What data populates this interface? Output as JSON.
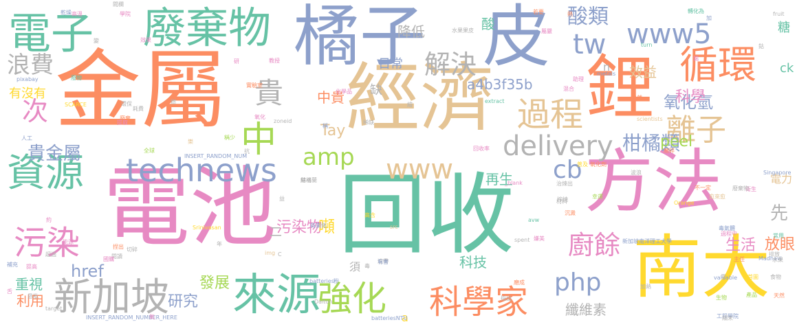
{
  "palette": {
    "green": "#66c2a5",
    "orange": "#fc8d62",
    "blue": "#8da0cb",
    "pink": "#e78ac3",
    "lime": "#a6d854",
    "yellow": "#ffd92f",
    "tan": "#e5c494",
    "gray": "#b3b3b3"
  },
  "words": [
    {
      "text": "回收",
      "color": "green"
    },
    {
      "text": "電池",
      "color": "pink"
    },
    {
      "text": "金屬",
      "color": "orange"
    },
    {
      "text": "經濟",
      "color": "tan"
    },
    {
      "text": "方法",
      "color": "pink"
    },
    {
      "text": "橘子",
      "color": "blue"
    },
    {
      "text": "皮",
      "color": "blue"
    },
    {
      "text": "南大",
      "color": "yellow"
    },
    {
      "text": "鋰",
      "color": "orange"
    },
    {
      "text": "廢棄物",
      "color": "green"
    },
    {
      "text": "電子",
      "color": "green"
    },
    {
      "text": "資源",
      "color": "green"
    },
    {
      "text": "循環",
      "color": "orange"
    },
    {
      "text": "來源",
      "color": "green"
    },
    {
      "text": "新加坡",
      "color": "gray"
    },
    {
      "text": "科學家",
      "color": "orange"
    },
    {
      "text": "technews",
      "color": "blue"
    },
    {
      "text": "delivery",
      "color": "gray"
    },
    {
      "text": "www5",
      "color": "blue"
    },
    {
      "text": "www",
      "color": "tan"
    },
    {
      "text": "過程",
      "color": "tan"
    },
    {
      "text": "強化",
      "color": "lime"
    },
    {
      "text": "污染",
      "color": "pink"
    },
    {
      "text": "離子",
      "color": "tan"
    },
    {
      "text": "中",
      "color": "lime"
    },
    {
      "text": "解決",
      "color": "gray"
    },
    {
      "text": "貴",
      "color": "gray"
    },
    {
      "text": "tw",
      "color": "blue"
    },
    {
      "text": "amp",
      "color": "lime"
    },
    {
      "text": "cb",
      "color": "blue"
    },
    {
      "text": "php",
      "color": "blue"
    },
    {
      "text": "廚餘",
      "color": "pink"
    },
    {
      "text": "浪費",
      "color": "gray"
    },
    {
      "text": "次",
      "color": "pink"
    },
    {
      "text": "貴金屬",
      "color": "blue"
    },
    {
      "text": "柑橘類",
      "color": "blue"
    },
    {
      "text": "氧化氫",
      "color": "blue"
    },
    {
      "text": "科學",
      "color": "pink"
    },
    {
      "text": "酸類",
      "color": "blue"
    },
    {
      "text": "污染物",
      "color": "pink"
    },
    {
      "text": "Tay",
      "color": "tan"
    },
    {
      "text": "peel",
      "color": "lime"
    },
    {
      "text": "研究",
      "color": "blue"
    },
    {
      "text": "先",
      "color": "gray"
    },
    {
      "text": "纖維素",
      "color": "gray"
    },
    {
      "text": "生活",
      "color": "pink"
    },
    {
      "text": "放眼",
      "color": "orange"
    },
    {
      "text": "發展",
      "color": "lime"
    },
    {
      "text": "科技",
      "color": "green"
    },
    {
      "text": "重視",
      "color": "green"
    },
    {
      "text": "利用",
      "color": "orange"
    },
    {
      "text": "href",
      "color": "blue"
    },
    {
      "text": "再生",
      "color": "green"
    },
    {
      "text": "電力",
      "color": "tan"
    },
    {
      "text": "a4b3f35b",
      "color": "blue"
    },
    {
      "text": "中貴",
      "color": "orange"
    },
    {
      "text": "有沒有",
      "color": "yellow"
    },
    {
      "text": "效益",
      "color": "tan"
    },
    {
      "text": "降低",
      "color": "gray"
    },
    {
      "text": "日常",
      "color": "blue"
    },
    {
      "text": "缺",
      "color": "gray"
    },
    {
      "text": "二",
      "color": "gray"
    },
    {
      "text": "酸",
      "color": "green"
    },
    {
      "text": "糖",
      "color": "green"
    },
    {
      "text": "須",
      "color": "gray"
    },
    {
      "text": "噸",
      "color": "yellow"
    },
    {
      "text": "ck",
      "color": "green"
    },
    {
      "text": "n",
      "color": "gray"
    },
    {
      "text": "a",
      "color": "yellow"
    },
    {
      "text": "INSERT_RANDOM_NUMBER_HERE",
      "color": "blue"
    },
    {
      "text": "INSERT_RANDOM_NUM",
      "color": "blue"
    },
    {
      "text": "batteriesNTU",
      "color": "blue"
    },
    {
      "text": "batteries",
      "color": "blue"
    },
    {
      "text": "scientists",
      "color": "tan"
    },
    {
      "text": "Singapore",
      "color": "blue"
    },
    {
      "text": "Orange",
      "color": "yellow"
    },
    {
      "text": "Madhavi",
      "color": "blue"
    },
    {
      "text": "Srinivasan",
      "color": "yellow"
    },
    {
      "text": "Dalton",
      "color": "gray"
    },
    {
      "text": "valuable",
      "color": "blue"
    },
    {
      "text": "spent",
      "color": "gray"
    },
    {
      "text": "zoneid",
      "color": "gray"
    },
    {
      "text": "extract",
      "color": "green"
    },
    {
      "text": "metals",
      "color": "blue"
    },
    {
      "text": "fruit",
      "color": "gray"
    },
    {
      "text": "target",
      "color": "gray"
    },
    {
      "text": "pixabay",
      "color": "blue"
    },
    {
      "text": "SCARCE",
      "color": "yellow"
    },
    {
      "text": "_blank",
      "color": "pink"
    },
    {
      "text": "新加坡南洋理工大學",
      "color": "blue"
    },
    {
      "text": "工程學院",
      "color": "blue"
    },
    {
      "text": "水果果皮",
      "color": "gray"
    },
    {
      "text": "轉化為",
      "color": "green"
    },
    {
      "text": "回收率",
      "color": "pink"
    },
    {
      "text": "氧化劑",
      "color": "orange"
    },
    {
      "text": "商業化",
      "color": "blue"
    },
    {
      "text": "化學品",
      "color": "pink"
    },
    {
      "text": "實驗室",
      "color": "orange"
    },
    {
      "text": "衛生",
      "color": "pink"
    },
    {
      "text": "能源",
      "color": "pink"
    },
    {
      "text": "天然",
      "color": "orange"
    },
    {
      "text": "常用",
      "color": "green"
    },
    {
      "text": "排放",
      "color": "gray"
    },
    {
      "text": "食物",
      "color": "gray"
    },
    {
      "text": "水果",
      "color": "gray"
    },
    {
      "text": "約",
      "color": "pink"
    },
    {
      "text": "年",
      "color": "gray"
    },
    {
      "text": "C",
      "color": "gray"
    },
    {
      "text": "img",
      "color": "tan"
    },
    {
      "text": "src",
      "color": "tan"
    },
    {
      "text": "turn",
      "color": "green"
    },
    {
      "text": "avw",
      "color": "green"
    },
    {
      "text": "首圖",
      "color": "yellow"
    },
    {
      "text": "乾燥",
      "color": "blue"
    },
    {
      "text": "高溫",
      "color": "pink"
    },
    {
      "text": "廢物",
      "color": "green"
    },
    {
      "text": "環保",
      "color": "gray"
    },
    {
      "text": "廢棄",
      "color": "orange"
    },
    {
      "text": "耗費",
      "color": "gray"
    },
    {
      "text": "提取",
      "color": "pink"
    },
    {
      "text": "人工",
      "color": "blue"
    },
    {
      "text": "全球",
      "color": "lime"
    },
    {
      "text": "嫌美",
      "color": "pink"
    },
    {
      "text": "速帶",
      "color": "gray"
    },
    {
      "text": "毒",
      "color": "gray"
    },
    {
      "text": "粉",
      "color": "blue"
    },
    {
      "text": "蘇格蘭",
      "color": "gray"
    },
    {
      "text": "生物",
      "color": "lime"
    },
    {
      "text": "若要",
      "color": "orange"
    },
    {
      "text": "加",
      "color": "blue"
    },
    {
      "text": "熱",
      "color": "orange"
    },
    {
      "text": "學院",
      "color": "pink"
    },
    {
      "text": "屬嚴",
      "color": "pink"
    },
    {
      "text": "閥欄",
      "color": "gray"
    },
    {
      "text": "效果",
      "color": "pink"
    },
    {
      "text": "變",
      "color": "gray"
    },
    {
      "text": "研",
      "color": "pink"
    },
    {
      "text": "教授",
      "color": "pink"
    },
    {
      "text": "錫",
      "color": "pink"
    },
    {
      "text": "鈷",
      "color": "gray"
    },
    {
      "text": "稀缺",
      "color": "gray"
    },
    {
      "text": "稱",
      "color": "blue"
    },
    {
      "text": "氧化",
      "color": "pink"
    },
    {
      "text": "混合",
      "color": "pink"
    },
    {
      "text": "助理",
      "color": "pink"
    },
    {
      "text": "自然",
      "color": "orange"
    },
    {
      "text": "普及",
      "color": "yellow"
    },
    {
      "text": "波浪",
      "color": "gray"
    },
    {
      "text": "過程中",
      "color": "pink"
    },
    {
      "text": "磨碎",
      "color": "orange"
    },
    {
      "text": "榨燒",
      "color": "gray"
    },
    {
      "text": "材料",
      "color": "gray"
    },
    {
      "text": "治煉出",
      "color": "gray"
    },
    {
      "text": "沉澱",
      "color": "orange"
    },
    {
      "text": "幸運",
      "color": "lime"
    },
    {
      "text": "愈來愈",
      "color": "tan"
    },
    {
      "text": "廢棄物",
      "color": "gray"
    },
    {
      "text": "不一定",
      "color": "orange"
    },
    {
      "text": "毒氣體",
      "color": "blue"
    },
    {
      "text": "主任",
      "color": "orange"
    },
    {
      "text": "零",
      "color": "gray"
    },
    {
      "text": "加熱",
      "color": "gray"
    },
    {
      "text": "細末",
      "color": "gray"
    },
    {
      "text": "產品",
      "color": "lime"
    },
    {
      "text": "磨成",
      "color": "orange"
    },
    {
      "text": "指出",
      "color": "gray"
    },
    {
      "text": "有害",
      "color": "blue"
    },
    {
      "text": "補充",
      "color": "blue"
    },
    {
      "text": "提高",
      "color": "pink"
    },
    {
      "text": "超過",
      "color": "gray"
    },
    {
      "text": "切碎",
      "color": "gray"
    },
    {
      "text": "捏出",
      "color": "orange"
    },
    {
      "text": "恳批",
      "color": "gray"
    },
    {
      "text": "氧",
      "color": "pink"
    },
    {
      "text": "閱讀",
      "color": "gray"
    },
    {
      "text": "國購",
      "color": "pink"
    },
    {
      "text": "舌",
      "color": "pink"
    },
    {
      "text": "燃",
      "color": "gray"
    },
    {
      "text": "益",
      "color": "gray"
    },
    {
      "text": "稱少",
      "color": "lime"
    },
    {
      "text": "抗",
      "color": "gray"
    },
    {
      "text": "樂",
      "color": "tan"
    },
    {
      "text": "高含",
      "color": "yellow"
    },
    {
      "text": "結構",
      "color": "gray"
    },
    {
      "text": "繪",
      "color": "gray"
    }
  ]
}
